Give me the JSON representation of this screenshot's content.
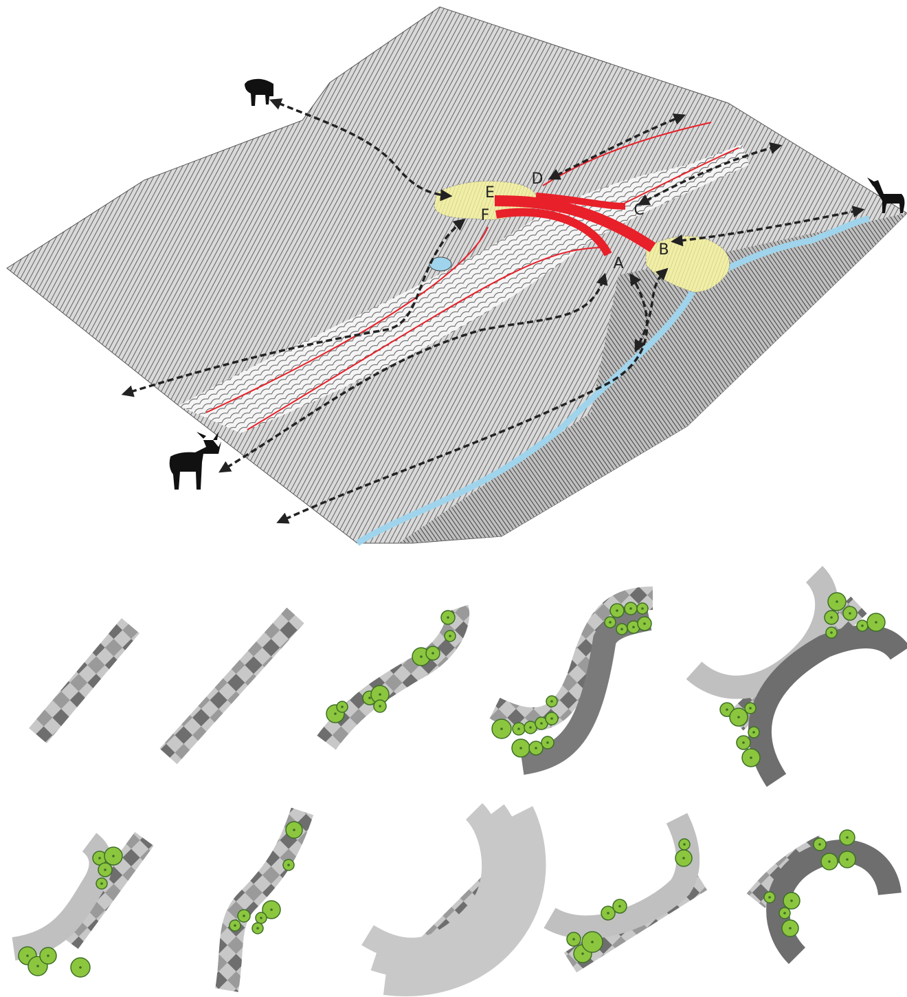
{
  "markers": [
    "A",
    "B",
    "C",
    "D",
    "E",
    "F"
  ]
}
